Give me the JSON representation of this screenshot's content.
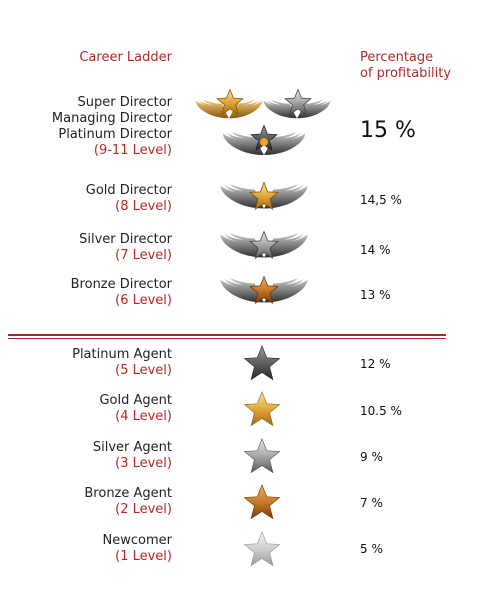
{
  "header": {
    "left": "Career Ladder",
    "right_line1": "Percentage",
    "right_line2": "of profitability"
  },
  "top": {
    "names": [
      "Super Director",
      "Managing Director",
      "Platinum Director"
    ],
    "level": "(9-11 Level)",
    "pct": "15 %"
  },
  "directors": [
    {
      "name": "Gold Director",
      "level": "(8 Level)",
      "pct": "14,5 %"
    },
    {
      "name": "Silver Director",
      "level": "(7 Level)",
      "pct": "14 %"
    },
    {
      "name": "Bronze Director",
      "level": "(6 Level)",
      "pct": "13 %"
    }
  ],
  "agents": [
    {
      "name": "Platinum Agent",
      "level": "(5 Level)",
      "pct": "12 %"
    },
    {
      "name": "Gold Agent",
      "level": "(4 Level)",
      "pct": "10.5 %"
    },
    {
      "name": "Silver Agent",
      "level": "(3 Level)",
      "pct": "9 %"
    },
    {
      "name": "Bronze Agent",
      "level": "(2 Level)",
      "pct": "7 %"
    },
    {
      "name": "Newcomer",
      "level": "(1 Level)",
      "pct": "5 %"
    }
  ],
  "colors": {
    "accent": "#b22a2a",
    "gold": "#e0a83a",
    "silver": "#9a9a9a",
    "bronze": "#c77a2a",
    "platinum": "#6f6f6f",
    "newcomer": "#cfcfcf"
  },
  "icons": {
    "winged_star": "winged-star-icon",
    "star": "star-icon"
  }
}
